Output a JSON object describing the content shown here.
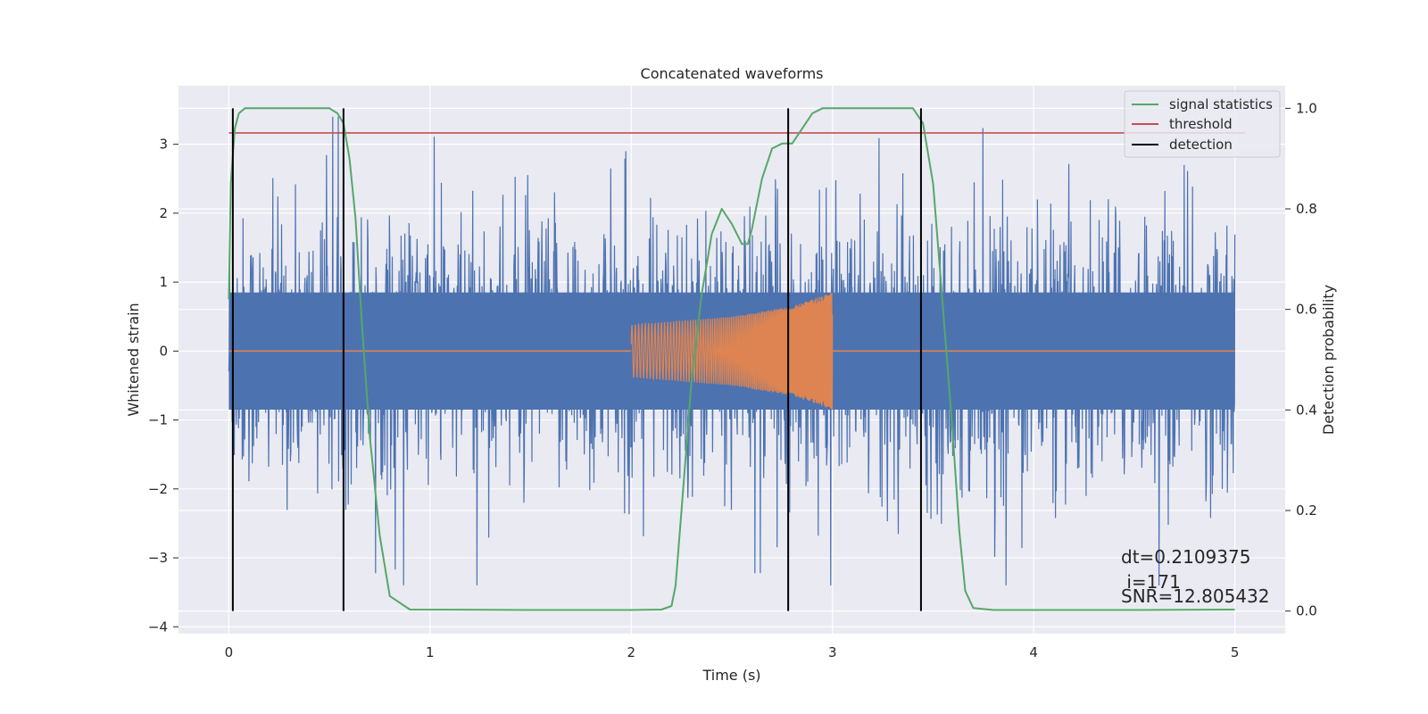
{
  "chart_data": {
    "type": "line",
    "title": "Concatenated waveforms",
    "xlabel": "Time (s)",
    "ylabel": "Whitened strain",
    "y2label": "Detection probability",
    "xlim": [
      -0.25,
      5.25
    ],
    "ylim": [
      -4.1,
      3.85
    ],
    "y2lim": [
      -0.045,
      1.045
    ],
    "xticks": [
      0,
      1,
      2,
      3,
      4,
      5
    ],
    "xtick_labels": [
      "0",
      "1",
      "2",
      "3",
      "4",
      "5"
    ],
    "yticks": [
      -4,
      -3,
      -2,
      -1,
      0,
      1,
      2,
      3
    ],
    "ytick_labels": [
      "−4",
      "−3",
      "−2",
      "−1",
      "0",
      "1",
      "2",
      "3"
    ],
    "y2ticks": [
      0.0,
      0.2,
      0.4,
      0.6,
      0.8,
      1.0
    ],
    "y2tick_labels": [
      "0.0",
      "0.2",
      "0.4",
      "0.6",
      "0.8",
      "1.0"
    ],
    "grid": true,
    "legend_position": "top-right",
    "colors": {
      "background": "#eaeaf2",
      "grid": "#ffffff",
      "strain": "#4c72b0",
      "waveform": "#dd8452",
      "signal_statistics": "#55a868",
      "threshold": "#c44e52",
      "detection": "#000000"
    },
    "series": [
      {
        "name": "whitened strain (noise)",
        "axis": "left",
        "x_range": [
          0,
          5
        ],
        "envelope_core": 0.85,
        "envelope_peak": 3.4
      },
      {
        "name": "injected waveform",
        "axis": "left",
        "x": [
          2.0,
          2.5,
          2.8,
          3.0
        ],
        "amplitude": [
          0.38,
          0.5,
          0.65,
          0.85
        ],
        "baseline": 0.0
      },
      {
        "name": "signal statistics",
        "axis": "right",
        "x": [
          0.0,
          0.01,
          0.03,
          0.05,
          0.08,
          0.12,
          0.5,
          0.54,
          0.57,
          0.6,
          0.63,
          0.66,
          0.7,
          0.75,
          0.8,
          0.9,
          1.5,
          2.0,
          2.15,
          2.2,
          2.22,
          2.25,
          2.3,
          2.35,
          2.4,
          2.45,
          2.5,
          2.55,
          2.58,
          2.6,
          2.65,
          2.7,
          2.75,
          2.8,
          2.85,
          2.9,
          2.95,
          3.1,
          3.4,
          3.45,
          3.5,
          3.55,
          3.6,
          3.63,
          3.66,
          3.7,
          3.8,
          4.5,
          5.0
        ],
        "y": [
          0.62,
          0.85,
          0.96,
          0.99,
          1.0,
          1.0,
          1.0,
          0.99,
          0.97,
          0.9,
          0.78,
          0.58,
          0.35,
          0.15,
          0.03,
          0.003,
          0.002,
          0.002,
          0.003,
          0.01,
          0.05,
          0.2,
          0.46,
          0.63,
          0.75,
          0.8,
          0.77,
          0.73,
          0.73,
          0.76,
          0.86,
          0.92,
          0.93,
          0.93,
          0.96,
          0.99,
          1.0,
          1.0,
          1.0,
          0.97,
          0.85,
          0.6,
          0.34,
          0.16,
          0.04,
          0.006,
          0.002,
          0.002,
          0.003
        ]
      },
      {
        "name": "threshold",
        "axis": "right",
        "x": [
          0,
          5.05
        ],
        "y": [
          0.951,
          0.951
        ]
      },
      {
        "name": "detection",
        "axis": "right",
        "x": [
          0.02,
          0.57,
          2.78,
          3.44
        ],
        "y_range": [
          0.0,
          1.0
        ]
      }
    ],
    "legend": [
      "signal statistics",
      "threshold",
      "detection"
    ],
    "annotations": [
      "dt=0.2109375",
      " i=171",
      "SNR=12.805432"
    ]
  }
}
